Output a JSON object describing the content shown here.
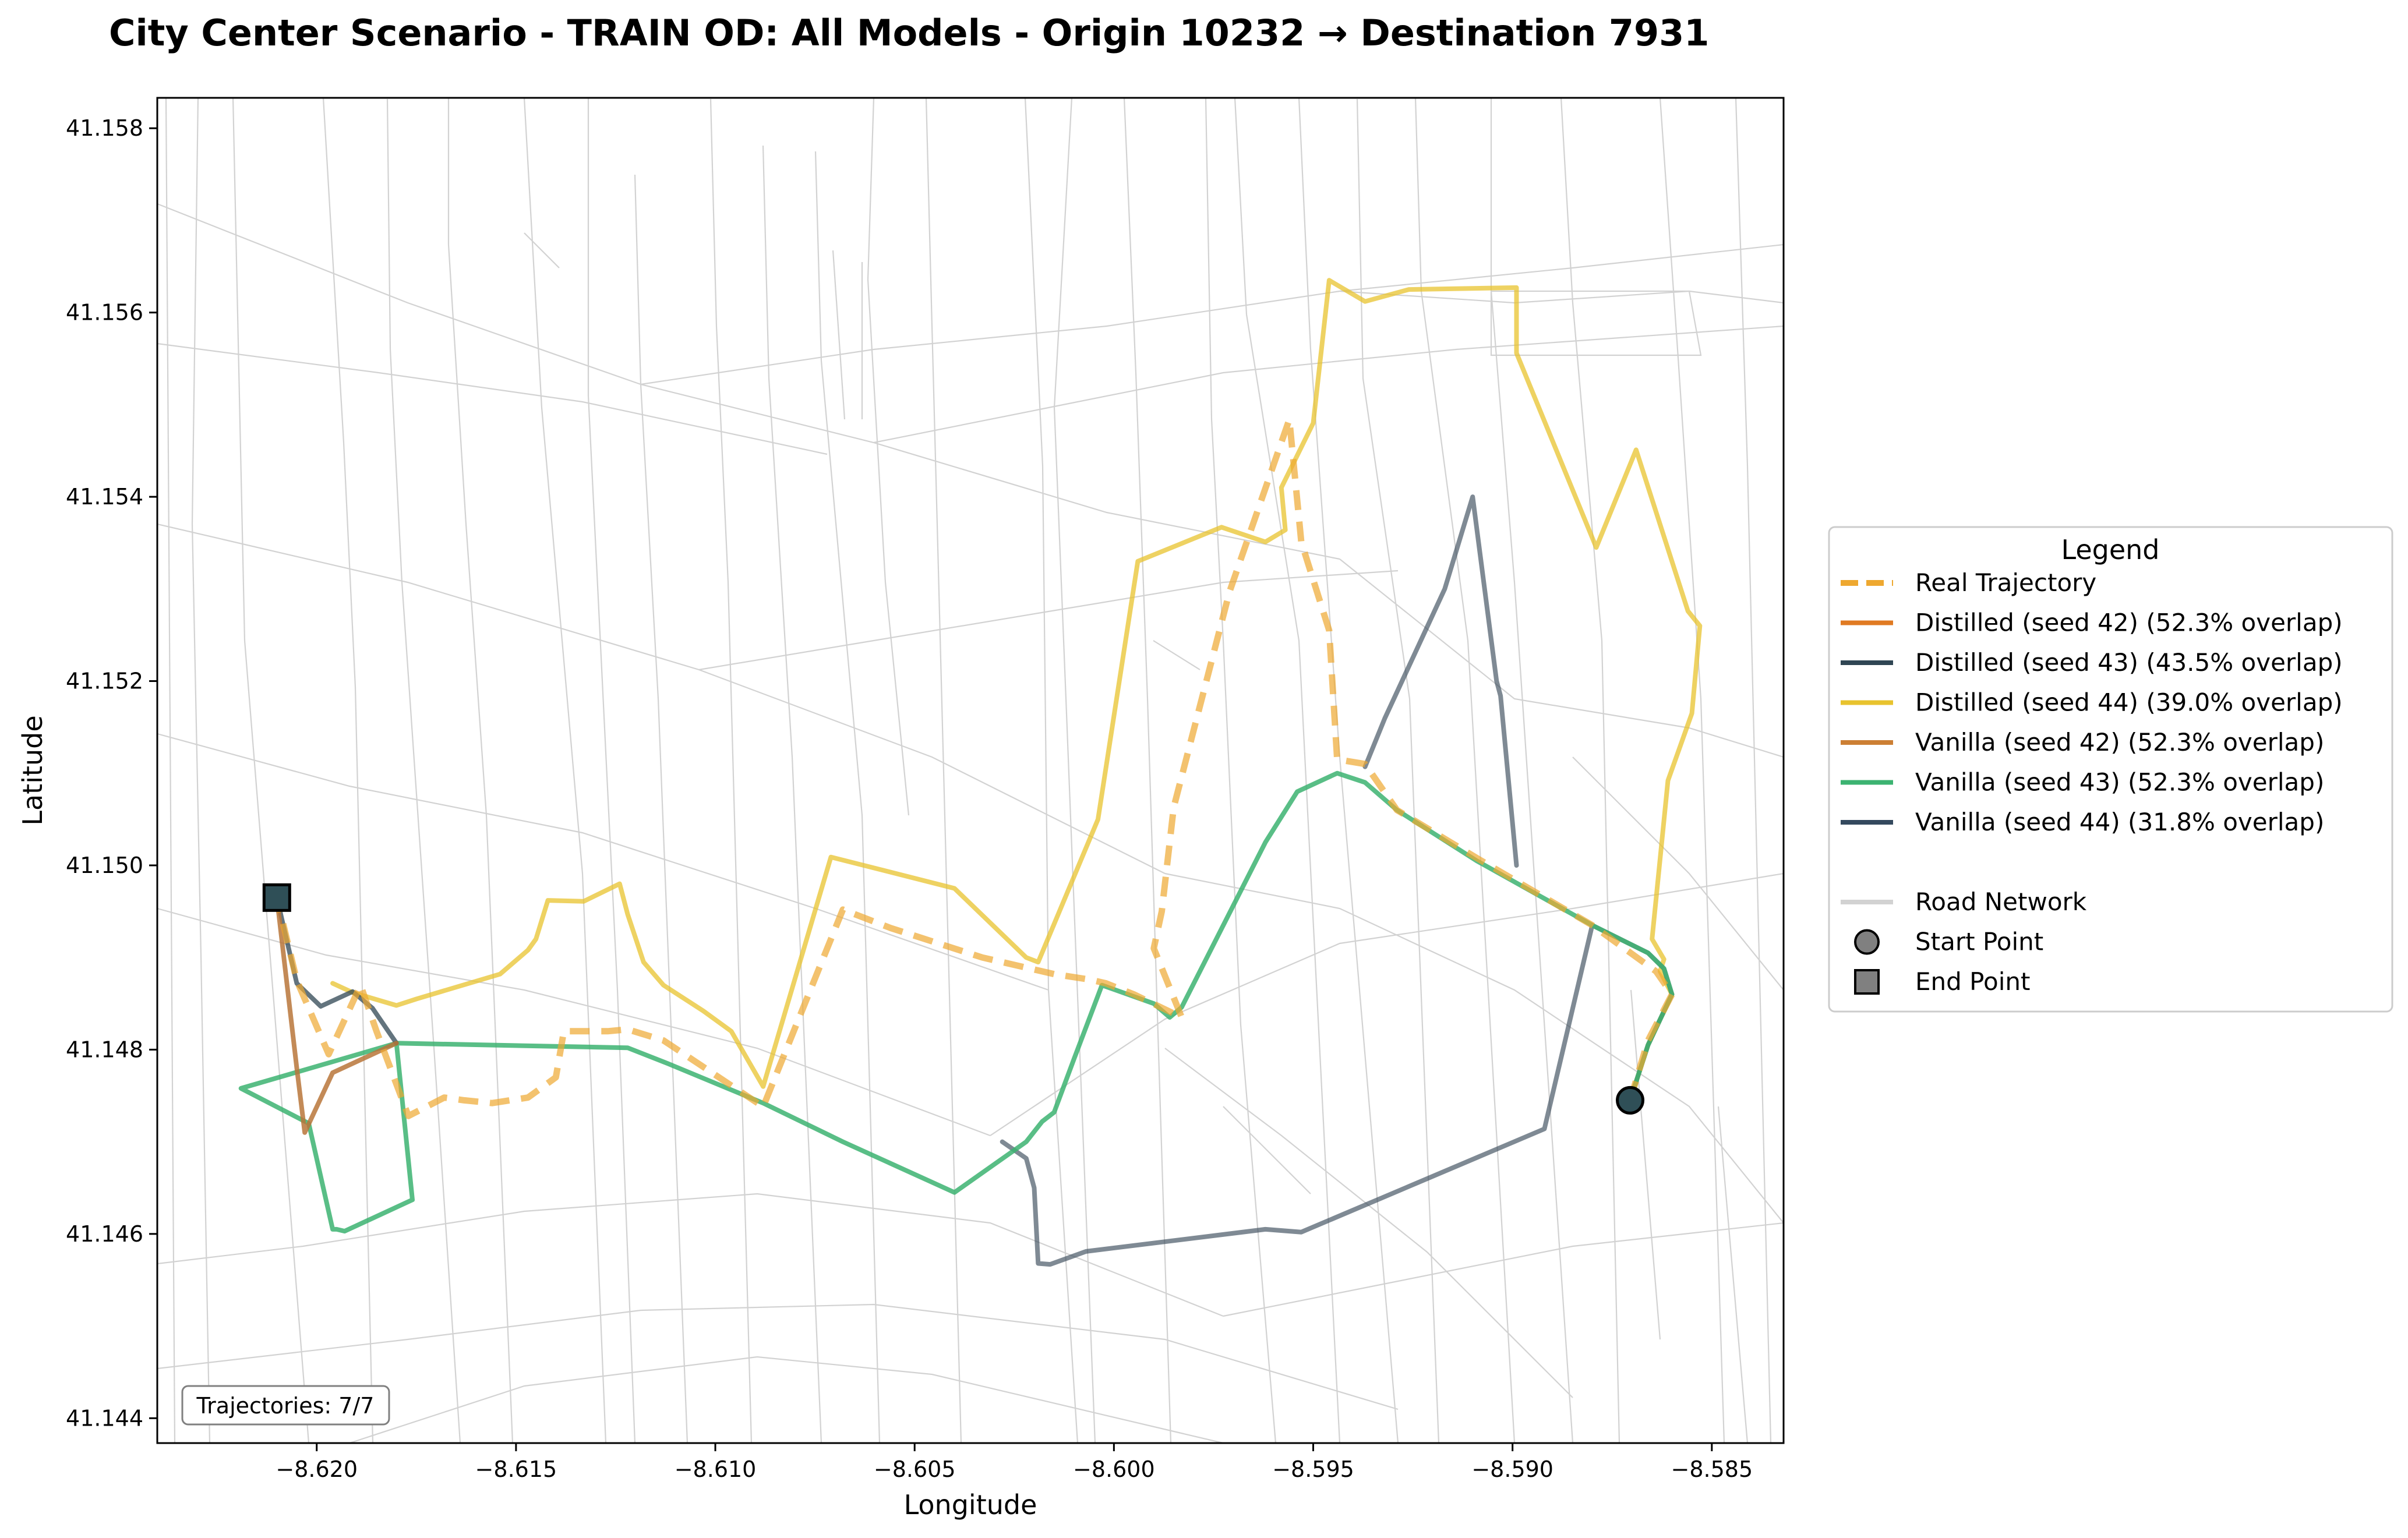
{
  "title": "City Center Scenario - TRAIN OD: All Models - Origin 10232 → Destination 7931",
  "annotation": "Trajectories: 7/7",
  "chart_data": {
    "type": "line",
    "xlabel": "Longitude",
    "ylabel": "Latitude",
    "xlim": [
      -8.624,
      -8.5832
    ],
    "ylim": [
      41.14373,
      41.15833
    ],
    "xticks": [
      -8.62,
      -8.615,
      -8.61,
      -8.605,
      -8.6,
      -8.595,
      -8.59,
      -8.585
    ],
    "xtick_labels": [
      "−8.620",
      "−8.615",
      "−8.610",
      "−8.605",
      "−8.600",
      "−8.595",
      "−8.590",
      "−8.585"
    ],
    "yticks": [
      41.144,
      41.146,
      41.148,
      41.15,
      41.152,
      41.154,
      41.156,
      41.158
    ],
    "ytick_labels": [
      "41.144",
      "41.146",
      "41.148",
      "41.150",
      "41.152",
      "41.154",
      "41.156",
      "41.158"
    ],
    "grid": false,
    "legend": {
      "title": "Legend",
      "position": "right"
    },
    "start_point": {
      "label": "Start Point",
      "x": -8.58705,
      "y": 41.14745,
      "color": "#2f4f57"
    },
    "end_point": {
      "label": "End Point",
      "x": -8.621,
      "y": 41.14965,
      "color": "#2f4f57"
    },
    "road_network": {
      "label": "Road Network",
      "color": "#d2d2d2"
    },
    "series": [
      {
        "name": "Distilled (seed 44) (39.0% overlap)",
        "color": "#e8c32e",
        "style": "solid",
        "width": 8,
        "opacity": 0.75,
        "x": [
          -8.58705,
          -8.5866,
          -8.586,
          -8.5863,
          -8.5862,
          -8.5865,
          -8.5861,
          -8.5855,
          -8.5853,
          -8.5856,
          -8.5869,
          -8.5879,
          -8.5899,
          -8.5899,
          -8.5926,
          -8.5937,
          -8.5946,
          -8.595,
          -8.5958,
          -8.5957,
          -8.5962,
          -8.5973,
          -8.5994,
          -8.6004,
          -8.6019,
          -8.6022,
          -8.604,
          -8.6071,
          -8.6088,
          -8.6096,
          -8.6103,
          -8.6113,
          -8.6118,
          -8.6122,
          -8.6124,
          -8.6133,
          -8.6142,
          -8.6145,
          -8.6147,
          -8.6154,
          -8.6175,
          -8.618,
          -8.6191,
          -8.6196
        ],
        "y": [
          41.14745,
          41.14805,
          41.1486,
          41.14885,
          41.14898,
          41.1492,
          41.15092,
          41.15165,
          41.1526,
          41.15276,
          41.15451,
          41.15345,
          41.15556,
          41.15627,
          41.15625,
          41.15612,
          41.15635,
          41.1548,
          41.1541,
          41.15364,
          41.15351,
          41.15367,
          41.1533,
          41.1505,
          41.14895,
          41.149,
          41.14975,
          41.15009,
          41.1476,
          41.1482,
          41.14842,
          41.1487,
          41.14895,
          41.14947,
          41.1498,
          41.14961,
          41.14962,
          41.1492,
          41.14908,
          41.14882,
          41.14855,
          41.14848,
          41.14862,
          41.14872
        ]
      },
      {
        "name": "Vanilla (seed 44) (31.8% overlap)",
        "color": "#3b4c5a",
        "style": "solid",
        "width": 8,
        "opacity": 0.65,
        "x": [
          -8.58705,
          -8.5866,
          -8.586,
          -8.5862,
          -8.5866,
          -8.588,
          -8.5892,
          -8.5953,
          -8.5962,
          -8.6007,
          -8.6016,
          -8.6019,
          -8.602,
          -8.6022,
          -8.6028
        ],
        "y": [
          41.14745,
          41.14805,
          41.1486,
          41.14888,
          41.14905,
          41.14935,
          41.14714,
          41.14602,
          41.14605,
          41.14581,
          41.14567,
          41.14568,
          41.1465,
          41.14682,
          41.147
        ]
      },
      {
        "name": "Vanilla (seed 44) (31.8% overlap)",
        "color": "#3b4c5a",
        "style": "solid",
        "width": 8,
        "opacity": 0.65,
        "x": [
          -8.5937,
          -8.5932,
          -8.5917,
          -8.591,
          -8.5904,
          -8.5903,
          -8.5899
        ],
        "y": [
          41.15107,
          41.1516,
          41.153,
          41.154,
          41.152,
          41.15184,
          41.15
        ]
      },
      {
        "name": "Vanilla (seed 43) (52.3% overlap)",
        "color": "#3cb371",
        "style": "solid",
        "width": 8,
        "opacity": 0.85,
        "x": [
          -8.58705,
          -8.5866,
          -8.586,
          -8.5862,
          -8.5866,
          -8.588,
          -8.5909,
          -8.5929,
          -8.5937,
          -8.5944,
          -8.5954,
          -8.5962,
          -8.5983,
          -8.5986,
          -8.599,
          -8.6003,
          -8.601,
          -8.6015,
          -8.6018,
          -8.6022,
          -8.604,
          -8.6068,
          -8.6088,
          -8.6112,
          -8.6122,
          -8.618,
          -8.6219,
          -8.6202,
          -8.6196,
          -8.6195,
          -8.6193,
          -8.6176,
          -8.618
        ],
        "y": [
          41.14745,
          41.14805,
          41.1486,
          41.14888,
          41.14905,
          41.14935,
          41.15005,
          41.1506,
          41.1509,
          41.151,
          41.1508,
          41.15025,
          41.14846,
          41.14835,
          41.1485,
          41.1487,
          41.1479,
          41.14732,
          41.14722,
          41.147,
          41.14645,
          41.147,
          41.14742,
          41.14785,
          41.14802,
          41.14807,
          41.14758,
          41.1472,
          41.14605,
          41.14605,
          41.14603,
          41.14637,
          41.14807
        ]
      },
      {
        "name": "Distilled (seed 43) (43.5% overlap)",
        "color": "#2f4553",
        "style": "solid",
        "width": 8,
        "opacity": 0.75,
        "x": [
          -8.618,
          -8.6186,
          -8.6191,
          -8.6199,
          -8.6205,
          -8.621
        ],
        "y": [
          41.14807,
          41.14845,
          41.14863,
          41.14847,
          41.14872,
          41.14965
        ]
      },
      {
        "name": "Vanilla (seed 42) (52.3% overlap)",
        "color": "#b8753a",
        "style": "solid",
        "width": 8,
        "opacity": 0.85,
        "x": [
          -8.618,
          -8.6196,
          -8.6203,
          -8.6205,
          -8.621
        ],
        "y": [
          41.14807,
          41.14775,
          41.1471,
          41.1478,
          41.14965
        ]
      },
      {
        "name": "Real Trajectory",
        "color": "#eea830",
        "style": "dashed",
        "width": 11,
        "opacity": 0.7,
        "x": [
          -8.58705,
          -8.5866,
          -8.586,
          -8.5864,
          -8.588,
          -8.5909,
          -8.5929,
          -8.5937,
          -8.5944,
          -8.5946,
          -8.5953,
          -8.5956,
          -8.5971,
          -8.5985,
          -8.5988,
          -8.599,
          -8.5983,
          -8.5995,
          -8.6002,
          -8.6006,
          -8.6015,
          -8.6033,
          -8.6056,
          -8.6068,
          -8.6088,
          -8.6113,
          -8.6122,
          -8.6127,
          -8.6138,
          -8.614,
          -8.6147,
          -8.6156,
          -8.6163,
          -8.6168,
          -8.6177,
          -8.6185,
          -8.6189,
          -8.6197,
          -8.6201,
          -8.6205,
          -8.621
        ],
        "y": [
          41.14745,
          41.1481,
          41.1486,
          41.14885,
          41.14935,
          41.15008,
          41.1506,
          41.1511,
          41.15115,
          41.15255,
          41.15351,
          41.15484,
          41.15297,
          41.15063,
          41.1495,
          41.1491,
          41.14835,
          41.1486,
          41.14872,
          41.14876,
          41.14882,
          41.149,
          41.14932,
          41.14952,
          41.14738,
          41.1481,
          41.14822,
          41.1482,
          41.1482,
          41.1477,
          41.14748,
          41.14742,
          41.14745,
          41.14748,
          41.14728,
          41.1482,
          41.1487,
          41.14795,
          41.14835,
          41.14875,
          41.14965
        ]
      }
    ],
    "legend_entries": [
      {
        "label": "Real Trajectory",
        "color": "#eea830",
        "style": "dashed",
        "alpha": 1
      },
      {
        "label": "Distilled (seed 42) (52.3% overlap)",
        "color": "#e07a22",
        "style": "solid",
        "alpha": 1
      },
      {
        "label": "Distilled (seed 43) (43.5% overlap)",
        "color": "#2f4553",
        "style": "solid",
        "alpha": 1
      },
      {
        "label": "Distilled (seed 44) (39.0% overlap)",
        "color": "#e8c32e",
        "style": "solid",
        "alpha": 1
      },
      {
        "label": "Vanilla (seed 42) (52.3% overlap)",
        "color": "#cc7f34",
        "style": "solid",
        "alpha": 1
      },
      {
        "label": "Vanilla (seed 43) (52.3% overlap)",
        "color": "#3cb371",
        "style": "solid",
        "alpha": 1
      },
      {
        "label": "Vanilla (seed 44) (31.8% overlap)",
        "color": "#34495e",
        "style": "solid",
        "alpha": 1
      },
      {
        "label": "",
        "color": "none",
        "style": "blank",
        "alpha": 0
      },
      {
        "label": "Road Network",
        "color": "#d2d2d2",
        "style": "solid",
        "alpha": 1
      },
      {
        "label": "Start Point",
        "color": "#808080",
        "style": "circle",
        "alpha": 1
      },
      {
        "label": "End Point",
        "color": "#808080",
        "style": "square",
        "alpha": 1
      }
    ]
  }
}
